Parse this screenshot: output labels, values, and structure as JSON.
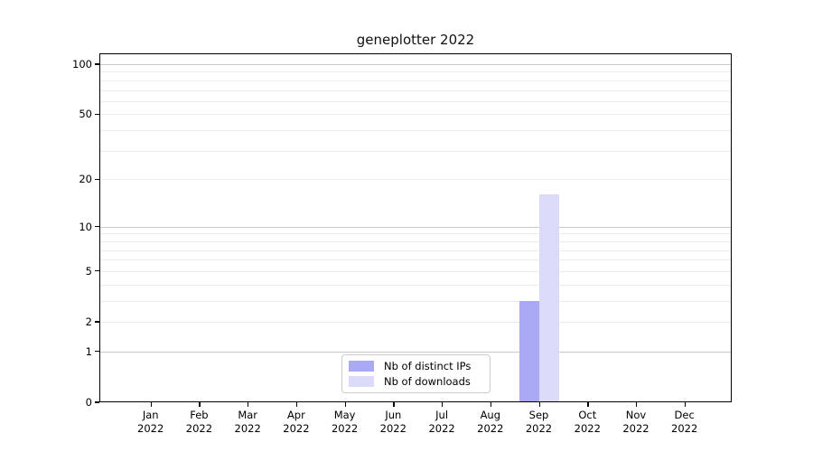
{
  "chart_data": {
    "type": "bar",
    "title": "geneplotter 2022",
    "categories": [
      "Jan",
      "Feb",
      "Mar",
      "Apr",
      "May",
      "Jun",
      "Jul",
      "Aug",
      "Sep",
      "Oct",
      "Nov",
      "Dec"
    ],
    "category_year": "2022",
    "series": [
      {
        "name": "Nb of distinct IPs",
        "color": "#a9a9f5",
        "values": [
          0,
          0,
          0,
          0,
          0,
          0,
          0,
          0,
          3,
          0,
          0,
          0
        ]
      },
      {
        "name": "Nb of downloads",
        "color": "#dbdbf9",
        "values": [
          0,
          0,
          0,
          0,
          0,
          0,
          0,
          0,
          16,
          0,
          0,
          0
        ]
      }
    ],
    "y_axis": {
      "scale": "log10(1+v)",
      "ticks": [
        0,
        1,
        2,
        5,
        10,
        20,
        50,
        100
      ],
      "gridlines_major": [
        1,
        10,
        100
      ],
      "gridlines_minor": [
        2,
        3,
        4,
        5,
        6,
        7,
        8,
        9,
        20,
        30,
        40,
        50,
        60,
        70,
        80,
        90
      ],
      "ylim": [
        0,
        115
      ]
    },
    "x_axis": {
      "label_format": "month over year"
    },
    "legend": {
      "position": "inside-bottom-center"
    },
    "colors": {
      "grid_major": "#c9c9c9",
      "grid_minor": "#ebebeb",
      "axis": "#000000",
      "background": "#ffffff"
    }
  }
}
